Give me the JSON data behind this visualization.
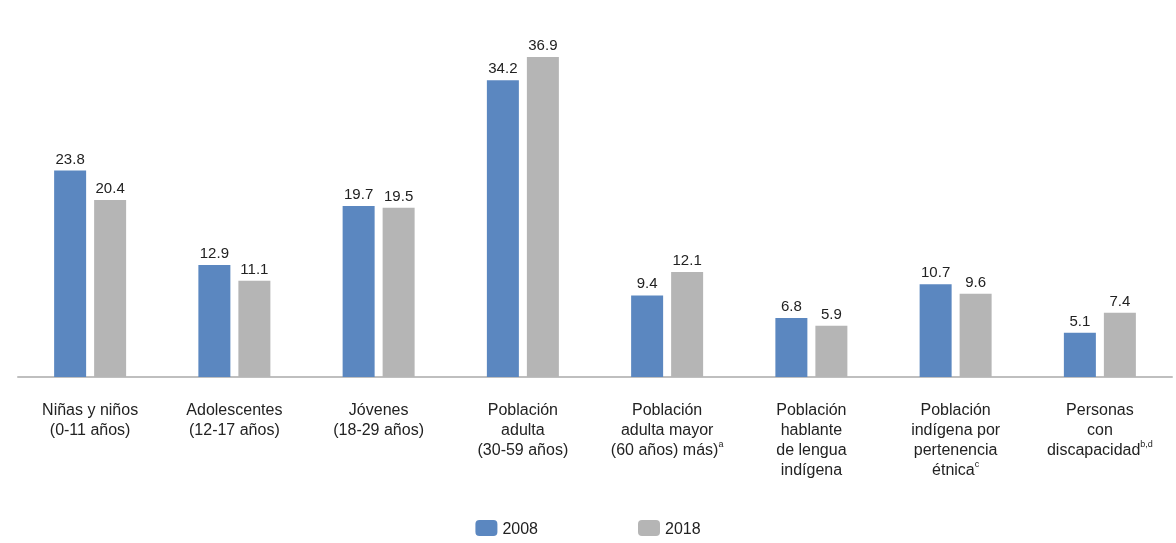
{
  "chart_data": {
    "type": "bar",
    "categories": [
      "Niñas y niños\n(0-11 años)",
      "Adolescentes\n(12-17 años)",
      "Jóvenes\n(18-29 años)",
      "Población\nadulta\n(30-59 años)",
      "Población\nadulta mayor\n(60 años) más)$^{a}$",
      "Población\nhablante\nde lengua\nindígena",
      "Población\nindígena por\npertenencia\nétnica$^{c}$",
      "Personas\ncon\ndiscapacidad$^{b,d}$"
    ],
    "series": [
      {
        "name": "2008",
        "color": "#5b87c0",
        "values": [
          23.8,
          12.9,
          19.7,
          34.2,
          9.4,
          6.8,
          10.7,
          5.1
        ]
      },
      {
        "name": "2018",
        "color": "#b5b5b5",
        "values": [
          20.4,
          11.1,
          19.5,
          36.9,
          12.1,
          5.9,
          9.6,
          7.4
        ]
      }
    ],
    "data_labels": true,
    "legend": "bottom"
  }
}
